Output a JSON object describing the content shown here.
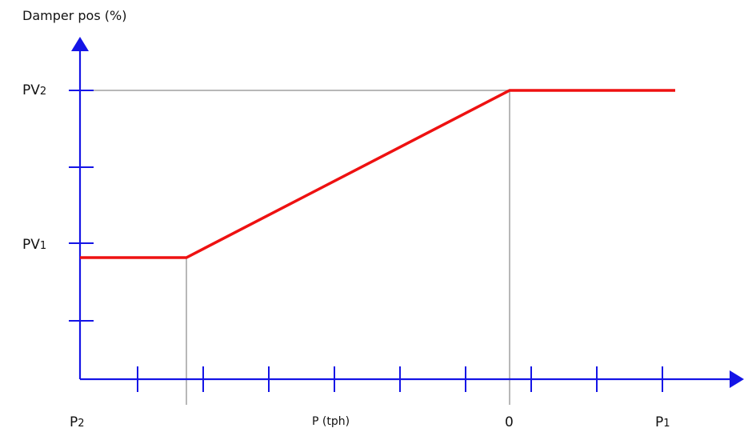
{
  "diagram": {
    "y_axis_title": "Damper pos (%)",
    "x_axis_title": "P (tph)",
    "y_labels": {
      "pv2": {
        "main": "PV",
        "sub": "2"
      },
      "pv1": {
        "main": "PV",
        "sub": "1"
      }
    },
    "x_labels": {
      "p2": {
        "main": "P",
        "sub": "2"
      },
      "zero": "0",
      "p1": {
        "main": "P",
        "sub": "1"
      }
    },
    "curve_points": [
      {
        "x": "P2",
        "y": "PV1"
      },
      {
        "x": "start of ramp",
        "y": "PV1"
      },
      {
        "x": "0",
        "y": "PV2"
      },
      {
        "x": "P1",
        "y": "PV2"
      }
    ],
    "colors": {
      "axis": "#1414e6",
      "curve": "#ee1111",
      "guide": "#a0a0a0",
      "text": "#111111"
    }
  }
}
